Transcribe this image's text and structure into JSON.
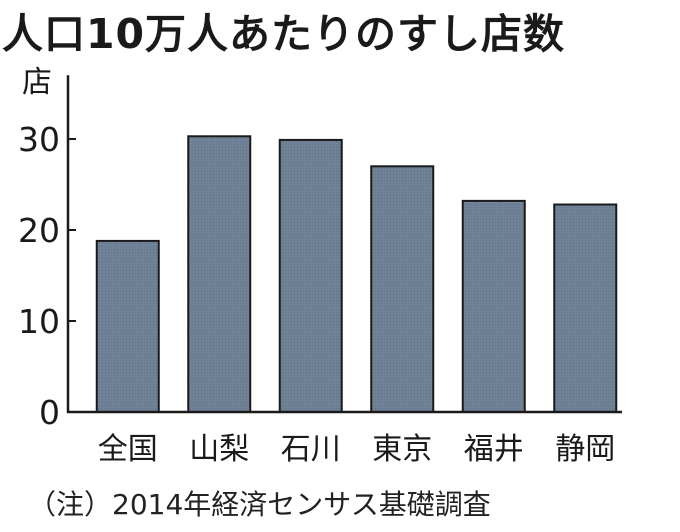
{
  "chart_data": {
    "type": "bar",
    "title": "人口10万人あたりのすし店数",
    "ylabel": "店",
    "categories": [
      "全国",
      "山梨",
      "石川",
      "東京",
      "福井",
      "静岡"
    ],
    "values": [
      18.8,
      30.3,
      29.9,
      27.0,
      23.2,
      22.8
    ],
    "ylim": [
      0,
      37
    ],
    "yticks": [
      0,
      10,
      20,
      30
    ],
    "grid": false,
    "bar_color": "#6f8297",
    "note": "（注）2014年経済センサス基礎調査"
  }
}
